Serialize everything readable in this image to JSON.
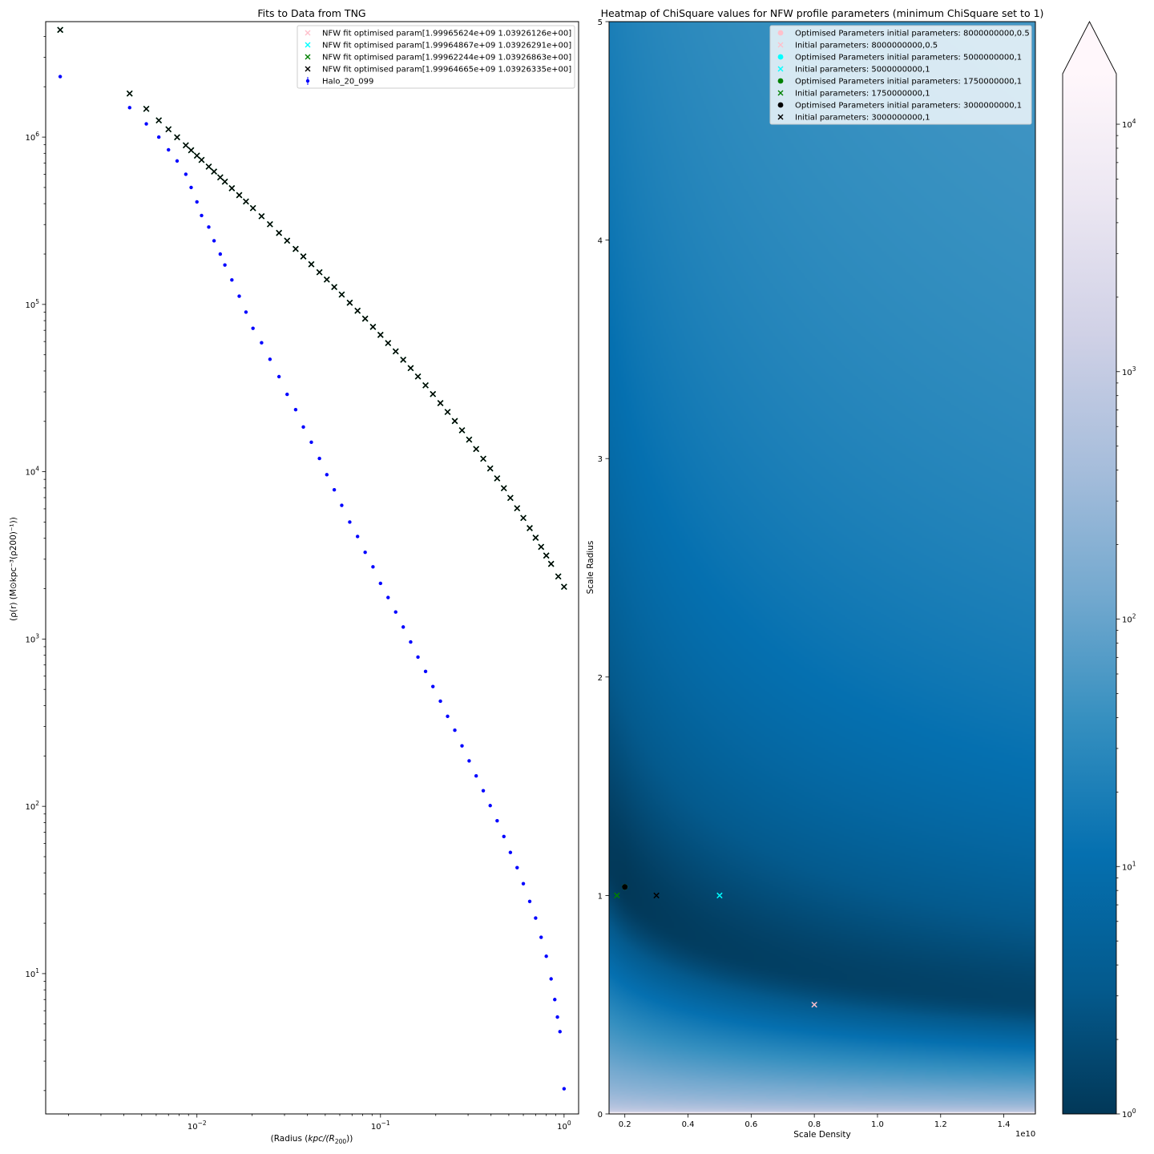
{
  "chart_data": [
    {
      "type": "scatter",
      "title": "Fits to Data from TNG",
      "xlabel": "(Radius (kpc/(R200))",
      "xlabel_parts": {
        "a": "(Radius (",
        "b": "kpc/(R",
        "sub": "200",
        "c": "))"
      },
      "ylabel": "(ρ(r) (M⊙kpc⁻³(ρ200)⁻¹))",
      "xscale": "log",
      "yscale": "log",
      "xlim": [
        0.0015,
        1.2
      ],
      "ylim": [
        1.45,
        4900000.0
      ],
      "xticks": [
        {
          "value": 0.01,
          "base": "10",
          "exp": "−2"
        },
        {
          "value": 0.1,
          "base": "10",
          "exp": "−1"
        },
        {
          "value": 1,
          "base": "10",
          "exp": "0"
        }
      ],
      "yticks": [
        {
          "value": 10,
          "base": "10",
          "exp": "1"
        },
        {
          "value": 100,
          "base": "10",
          "exp": "2"
        },
        {
          "value": 1000,
          "base": "10",
          "exp": "3"
        },
        {
          "value": 10000,
          "base": "10",
          "exp": "4"
        },
        {
          "value": 100000,
          "base": "10",
          "exp": "5"
        },
        {
          "value": 1000000,
          "base": "10",
          "exp": "6"
        }
      ],
      "legend_position": "top-right",
      "series": [
        {
          "name": "NFW fit optimised param[1.99965624e+09 1.03926126e+00]",
          "color": "#ffc0cb",
          "marker": "x",
          "rho_s": 1999656240.0,
          "r_s": 1.03926126
        },
        {
          "name": "NFW fit optimised param[1.99964867e+09 1.03926291e+00]",
          "color": "#00ffff",
          "marker": "x",
          "rho_s": 1999648670.0,
          "r_s": 1.03926291
        },
        {
          "name": "NFW fit optimised param[1.99962244e+09 1.03926863e+00]",
          "color": "#008000",
          "marker": "x",
          "rho_s": 1999622440.0,
          "r_s": 1.03926863
        },
        {
          "name": "NFW fit optimised param[1.99964665e+09 1.03926335e+00]",
          "color": "#000000",
          "marker": "x",
          "rho_s": 1999646650.0,
          "r_s": 1.03926335
        }
      ],
      "data_series": {
        "name": "Halo_20_099",
        "color": "#0000ff",
        "marker": "point-errorbar",
        "x": [
          0.0018,
          0.0043,
          0.0053,
          0.0062,
          0.007,
          0.0078,
          0.0087,
          0.0093,
          0.01,
          0.0106,
          0.0116,
          0.0124,
          0.0134,
          0.0142,
          0.0155,
          0.017,
          0.0185,
          0.0202,
          0.0225,
          0.025,
          0.028,
          0.031,
          0.0345,
          0.038,
          0.042,
          0.0465,
          0.051,
          0.056,
          0.0615,
          0.068,
          0.075,
          0.0825,
          0.091,
          0.1,
          0.11,
          0.121,
          0.133,
          0.146,
          0.16,
          0.176,
          0.193,
          0.212,
          0.232,
          0.254,
          0.278,
          0.304,
          0.332,
          0.363,
          0.396,
          0.432,
          0.47,
          0.51,
          0.555,
          0.6,
          0.65,
          0.7,
          0.75,
          0.8,
          0.85,
          0.89,
          0.92,
          0.95,
          1.0
        ],
        "y": [
          2300000,
          1500000,
          1200000,
          1000000,
          840000,
          720000,
          600000,
          500000,
          410000,
          340000,
          290000,
          240000,
          200000,
          172000,
          140000,
          112000,
          90000,
          72000,
          59000,
          47000,
          37000,
          29000,
          23500,
          18500,
          15000,
          12000,
          9600,
          7800,
          6300,
          5000,
          4100,
          3300,
          2700,
          2150,
          1770,
          1450,
          1180,
          960,
          780,
          640,
          520,
          425,
          345,
          285,
          230,
          187,
          152,
          124,
          101,
          82,
          66,
          53,
          43,
          34.5,
          27,
          21.5,
          16.5,
          12.7,
          9.3,
          7.0,
          5.5,
          4.5,
          2.05
        ]
      },
      "fit_x": [
        0.0018,
        0.0043,
        0.0053,
        0.0062,
        0.007,
        0.0078,
        0.0087,
        0.0093,
        0.01,
        0.0106,
        0.0116,
        0.0124,
        0.0134,
        0.0142,
        0.0155,
        0.017,
        0.0185,
        0.0202,
        0.0225,
        0.025,
        0.028,
        0.031,
        0.0345,
        0.038,
        0.042,
        0.0465,
        0.051,
        0.056,
        0.0615,
        0.068,
        0.075,
        0.0825,
        0.091,
        0.1,
        0.11,
        0.121,
        0.133,
        0.146,
        0.16,
        0.176,
        0.193,
        0.212,
        0.232,
        0.254,
        0.278,
        0.304,
        0.332,
        0.363,
        0.396,
        0.432,
        0.47,
        0.51,
        0.555,
        0.6,
        0.65,
        0.7,
        0.75,
        0.8,
        0.85,
        0.93,
        1.0
      ]
    },
    {
      "type": "heatmap",
      "title": "Heatmap of ChiSquare values for NFW profile parameters (minimum ChiSquare set to 1)",
      "xlabel": "Scale Density",
      "ylabel": "Scale Radius",
      "x_offset_label": "1e10",
      "xlim": [
        0.15,
        1.5
      ],
      "ylim": [
        0,
        5
      ],
      "xticks": [
        "0.2",
        "0.4",
        "0.6",
        "0.8",
        "1.0",
        "1.2",
        "1.4"
      ],
      "yticks": [
        "0",
        "1",
        "2",
        "3",
        "4",
        "5"
      ],
      "colormap": "PuBu_r",
      "colorbar": {
        "scale": "log",
        "range": [
          1,
          16000
        ],
        "extend": "max",
        "ticks": [
          {
            "value": 1,
            "base": "10",
            "exp": "0"
          },
          {
            "value": 10,
            "base": "10",
            "exp": "1"
          },
          {
            "value": 100,
            "base": "10",
            "exp": "2"
          },
          {
            "value": 1000,
            "base": "10",
            "exp": "3"
          },
          {
            "value": 10000,
            "base": "10",
            "exp": "4"
          }
        ]
      },
      "legend_position": "top-right",
      "points": [
        {
          "name": "Optimised Parameters initial parameters: 8000000000,0.5",
          "marker": "o",
          "color": "#ffc0cb",
          "x": 0.2,
          "y": 1.039
        },
        {
          "name": "Initial parameters: 8000000000,0.5",
          "marker": "x",
          "color": "#ffc0cb",
          "x": 0.8,
          "y": 0.5
        },
        {
          "name": "Optimised Parameters initial parameters: 5000000000,1",
          "marker": "o",
          "color": "#00ffff",
          "x": 0.2,
          "y": 1.039
        },
        {
          "name": "Initial parameters: 5000000000,1",
          "marker": "x",
          "color": "#00ffff",
          "x": 0.5,
          "y": 1
        },
        {
          "name": "Optimised Parameters initial parameters: 1750000000,1",
          "marker": "o",
          "color": "#008000",
          "x": 0.2,
          "y": 1.039
        },
        {
          "name": "Initial parameters: 1750000000,1",
          "marker": "x",
          "color": "#008000",
          "x": 0.175,
          "y": 1
        },
        {
          "name": "Optimised Parameters initial parameters: 3000000000,1",
          "marker": "o",
          "color": "#000000",
          "x": 0.2,
          "y": 1.039
        },
        {
          "name": "Initial parameters: 3000000000,1",
          "marker": "x",
          "color": "#000000",
          "x": 0.3,
          "y": 1
        }
      ],
      "minimum": {
        "x": 0.2,
        "y": 1.039
      }
    }
  ]
}
